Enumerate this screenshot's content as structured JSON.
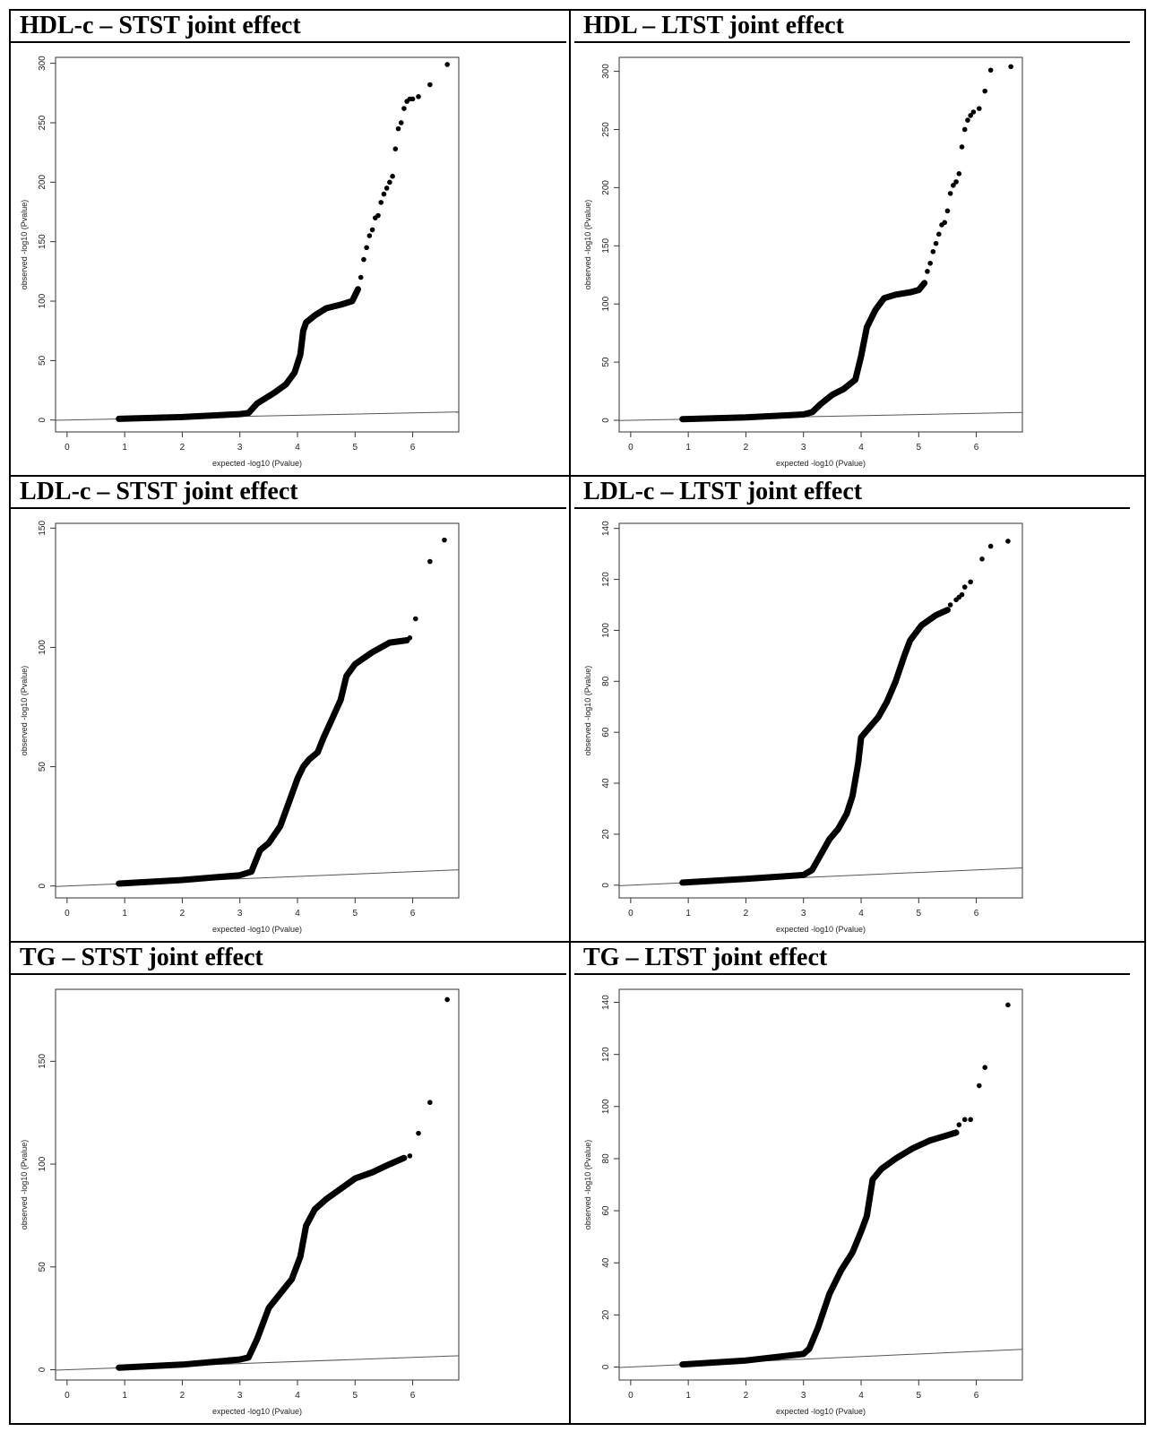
{
  "panels": [
    {
      "title": "HDL-c – STST joint effect",
      "chart_data": {
        "type": "scatter",
        "xlabel": "expected -log10 (Pvalue)",
        "ylabel": "observed -log10 (Pvalue)",
        "xlim": [
          -0.2,
          6.8
        ],
        "ylim": [
          -10,
          305
        ],
        "xticks": [
          0,
          1,
          2,
          3,
          4,
          5,
          6
        ],
        "yticks": [
          0,
          50,
          100,
          150,
          200,
          250,
          300
        ],
        "reference_line": "y=x",
        "curve": [
          [
            0.9,
            1
          ],
          [
            2,
            2.5
          ],
          [
            3,
            5
          ],
          [
            3.15,
            6
          ],
          [
            3.3,
            14
          ],
          [
            3.6,
            23
          ],
          [
            3.8,
            30
          ],
          [
            3.95,
            40
          ],
          [
            4.05,
            55
          ],
          [
            4.1,
            75
          ],
          [
            4.15,
            82
          ],
          [
            4.3,
            88
          ],
          [
            4.5,
            94
          ],
          [
            4.75,
            97
          ],
          [
            4.95,
            100
          ],
          [
            5.05,
            110
          ]
        ],
        "points": [
          [
            5.1,
            120
          ],
          [
            5.15,
            135
          ],
          [
            5.2,
            145
          ],
          [
            5.25,
            155
          ],
          [
            5.3,
            160
          ],
          [
            5.35,
            170
          ],
          [
            5.4,
            172
          ],
          [
            5.45,
            183
          ],
          [
            5.5,
            190
          ],
          [
            5.55,
            195
          ],
          [
            5.6,
            200
          ],
          [
            5.65,
            205
          ],
          [
            5.7,
            228
          ],
          [
            5.75,
            245
          ],
          [
            5.8,
            250
          ],
          [
            5.85,
            262
          ],
          [
            5.9,
            268
          ],
          [
            5.95,
            270
          ],
          [
            6.0,
            270
          ],
          [
            6.1,
            272
          ],
          [
            6.3,
            282
          ],
          [
            6.6,
            299
          ]
        ]
      }
    },
    {
      "title": "HDL – LTST joint effect",
      "chart_data": {
        "type": "scatter",
        "xlabel": "expected -log10 (Pvalue)",
        "ylabel": "observed -log10 (Pvalue)",
        "xlim": [
          -0.2,
          6.8
        ],
        "ylim": [
          -10,
          312
        ],
        "xticks": [
          0,
          1,
          2,
          3,
          4,
          5,
          6
        ],
        "yticks": [
          0,
          50,
          100,
          150,
          200,
          250,
          300
        ],
        "reference_line": "y=x",
        "curve": [
          [
            0.9,
            1
          ],
          [
            2,
            2.5
          ],
          [
            3,
            5
          ],
          [
            3.15,
            7
          ],
          [
            3.3,
            14
          ],
          [
            3.5,
            22
          ],
          [
            3.7,
            27
          ],
          [
            3.9,
            35
          ],
          [
            4.0,
            55
          ],
          [
            4.1,
            80
          ],
          [
            4.25,
            95
          ],
          [
            4.4,
            105
          ],
          [
            4.6,
            108
          ],
          [
            4.85,
            110
          ],
          [
            5.0,
            112
          ],
          [
            5.1,
            118
          ]
        ],
        "points": [
          [
            5.15,
            128
          ],
          [
            5.2,
            135
          ],
          [
            5.25,
            145
          ],
          [
            5.3,
            152
          ],
          [
            5.35,
            160
          ],
          [
            5.4,
            168
          ],
          [
            5.45,
            170
          ],
          [
            5.5,
            180
          ],
          [
            5.55,
            195
          ],
          [
            5.6,
            202
          ],
          [
            5.65,
            205
          ],
          [
            5.7,
            212
          ],
          [
            5.75,
            235
          ],
          [
            5.8,
            250
          ],
          [
            5.85,
            258
          ],
          [
            5.9,
            262
          ],
          [
            5.95,
            265
          ],
          [
            6.05,
            268
          ],
          [
            6.15,
            283
          ],
          [
            6.25,
            301
          ],
          [
            6.6,
            304
          ]
        ]
      }
    },
    {
      "title": "LDL-c – STST joint effect",
      "chart_data": {
        "type": "scatter",
        "xlabel": "expected -log10 (Pvalue)",
        "ylabel": "observed -log10 (Pvalue)",
        "xlim": [
          -0.2,
          6.8
        ],
        "ylim": [
          -5,
          152
        ],
        "xticks": [
          0,
          1,
          2,
          3,
          4,
          5,
          6
        ],
        "yticks": [
          0,
          50,
          100,
          150
        ],
        "reference_line": "y=x",
        "curve": [
          [
            0.9,
            1
          ],
          [
            2,
            2.5
          ],
          [
            3,
            4.5
          ],
          [
            3.2,
            6
          ],
          [
            3.35,
            15
          ],
          [
            3.5,
            18
          ],
          [
            3.7,
            25
          ],
          [
            3.85,
            35
          ],
          [
            4.0,
            45
          ],
          [
            4.1,
            50
          ],
          [
            4.2,
            53
          ],
          [
            4.35,
            56
          ],
          [
            4.45,
            62
          ],
          [
            4.6,
            70
          ],
          [
            4.75,
            78
          ],
          [
            4.85,
            88
          ],
          [
            5.0,
            93
          ],
          [
            5.3,
            98
          ],
          [
            5.6,
            102
          ],
          [
            5.9,
            103
          ]
        ],
        "points": [
          [
            5.95,
            104
          ],
          [
            6.05,
            112
          ],
          [
            6.3,
            136
          ],
          [
            6.55,
            145
          ]
        ]
      }
    },
    {
      "title": "LDL-c – LTST joint effect",
      "chart_data": {
        "type": "scatter",
        "xlabel": "expected -log10 (Pvalue)",
        "ylabel": "observed -log10 (Pvalue)",
        "xlim": [
          -0.2,
          6.8
        ],
        "ylim": [
          -5,
          142
        ],
        "xticks": [
          0,
          1,
          2,
          3,
          4,
          5,
          6
        ],
        "yticks": [
          0,
          20,
          40,
          60,
          80,
          100,
          120,
          140
        ],
        "reference_line": "y=x",
        "curve": [
          [
            0.9,
            1
          ],
          [
            2,
            2.5
          ],
          [
            3,
            4
          ],
          [
            3.15,
            6
          ],
          [
            3.3,
            12
          ],
          [
            3.45,
            18
          ],
          [
            3.6,
            22
          ],
          [
            3.75,
            28
          ],
          [
            3.85,
            35
          ],
          [
            3.95,
            48
          ],
          [
            4.0,
            58
          ],
          [
            4.15,
            62
          ],
          [
            4.3,
            66
          ],
          [
            4.45,
            72
          ],
          [
            4.6,
            80
          ],
          [
            4.75,
            90
          ],
          [
            4.85,
            96
          ],
          [
            5.05,
            102
          ],
          [
            5.3,
            106
          ],
          [
            5.5,
            108
          ]
        ],
        "points": [
          [
            5.55,
            110
          ],
          [
            5.65,
            112
          ],
          [
            5.7,
            113
          ],
          [
            5.75,
            114
          ],
          [
            5.8,
            117
          ],
          [
            5.9,
            119
          ],
          [
            6.1,
            128
          ],
          [
            6.25,
            133
          ],
          [
            6.55,
            135
          ]
        ]
      }
    },
    {
      "title": "TG – STST joint effect",
      "chart_data": {
        "type": "scatter",
        "xlabel": "expected -log10 (Pvalue)",
        "ylabel": "observed -log10 (Pvalue)",
        "xlim": [
          -0.2,
          6.8
        ],
        "ylim": [
          -5,
          185
        ],
        "xticks": [
          0,
          1,
          2,
          3,
          4,
          5,
          6
        ],
        "yticks": [
          0,
          50,
          100,
          150
        ],
        "reference_line": "y=x",
        "curve": [
          [
            0.9,
            1
          ],
          [
            2,
            2.5
          ],
          [
            3,
            5
          ],
          [
            3.15,
            6
          ],
          [
            3.3,
            15
          ],
          [
            3.5,
            30
          ],
          [
            3.7,
            37
          ],
          [
            3.9,
            44
          ],
          [
            4.05,
            55
          ],
          [
            4.15,
            70
          ],
          [
            4.3,
            78
          ],
          [
            4.5,
            83
          ],
          [
            4.75,
            88
          ],
          [
            5.0,
            93
          ],
          [
            5.3,
            96
          ],
          [
            5.6,
            100
          ],
          [
            5.85,
            103
          ]
        ],
        "points": [
          [
            5.95,
            104
          ],
          [
            6.1,
            115
          ],
          [
            6.3,
            130
          ],
          [
            6.6,
            180
          ]
        ]
      }
    },
    {
      "title": "TG – LTST joint effect",
      "chart_data": {
        "type": "scatter",
        "xlabel": "expected -log10 (Pvalue)",
        "ylabel": "observed -log10 (Pvalue)",
        "xlim": [
          -0.2,
          6.8
        ],
        "ylim": [
          -5,
          145
        ],
        "xticks": [
          0,
          1,
          2,
          3,
          4,
          5,
          6
        ],
        "yticks": [
          0,
          20,
          40,
          60,
          80,
          100,
          120,
          140
        ],
        "reference_line": "y=x",
        "curve": [
          [
            0.9,
            1
          ],
          [
            2,
            2.5
          ],
          [
            3,
            5
          ],
          [
            3.1,
            7
          ],
          [
            3.25,
            15
          ],
          [
            3.45,
            28
          ],
          [
            3.65,
            37
          ],
          [
            3.85,
            44
          ],
          [
            4.0,
            52
          ],
          [
            4.1,
            58
          ],
          [
            4.2,
            72
          ],
          [
            4.35,
            76
          ],
          [
            4.6,
            80
          ],
          [
            4.9,
            84
          ],
          [
            5.2,
            87
          ],
          [
            5.5,
            89
          ],
          [
            5.65,
            90
          ]
        ],
        "points": [
          [
            5.7,
            93
          ],
          [
            5.8,
            95
          ],
          [
            5.9,
            95
          ],
          [
            6.05,
            108
          ],
          [
            6.15,
            115
          ],
          [
            6.55,
            139
          ]
        ]
      }
    }
  ]
}
